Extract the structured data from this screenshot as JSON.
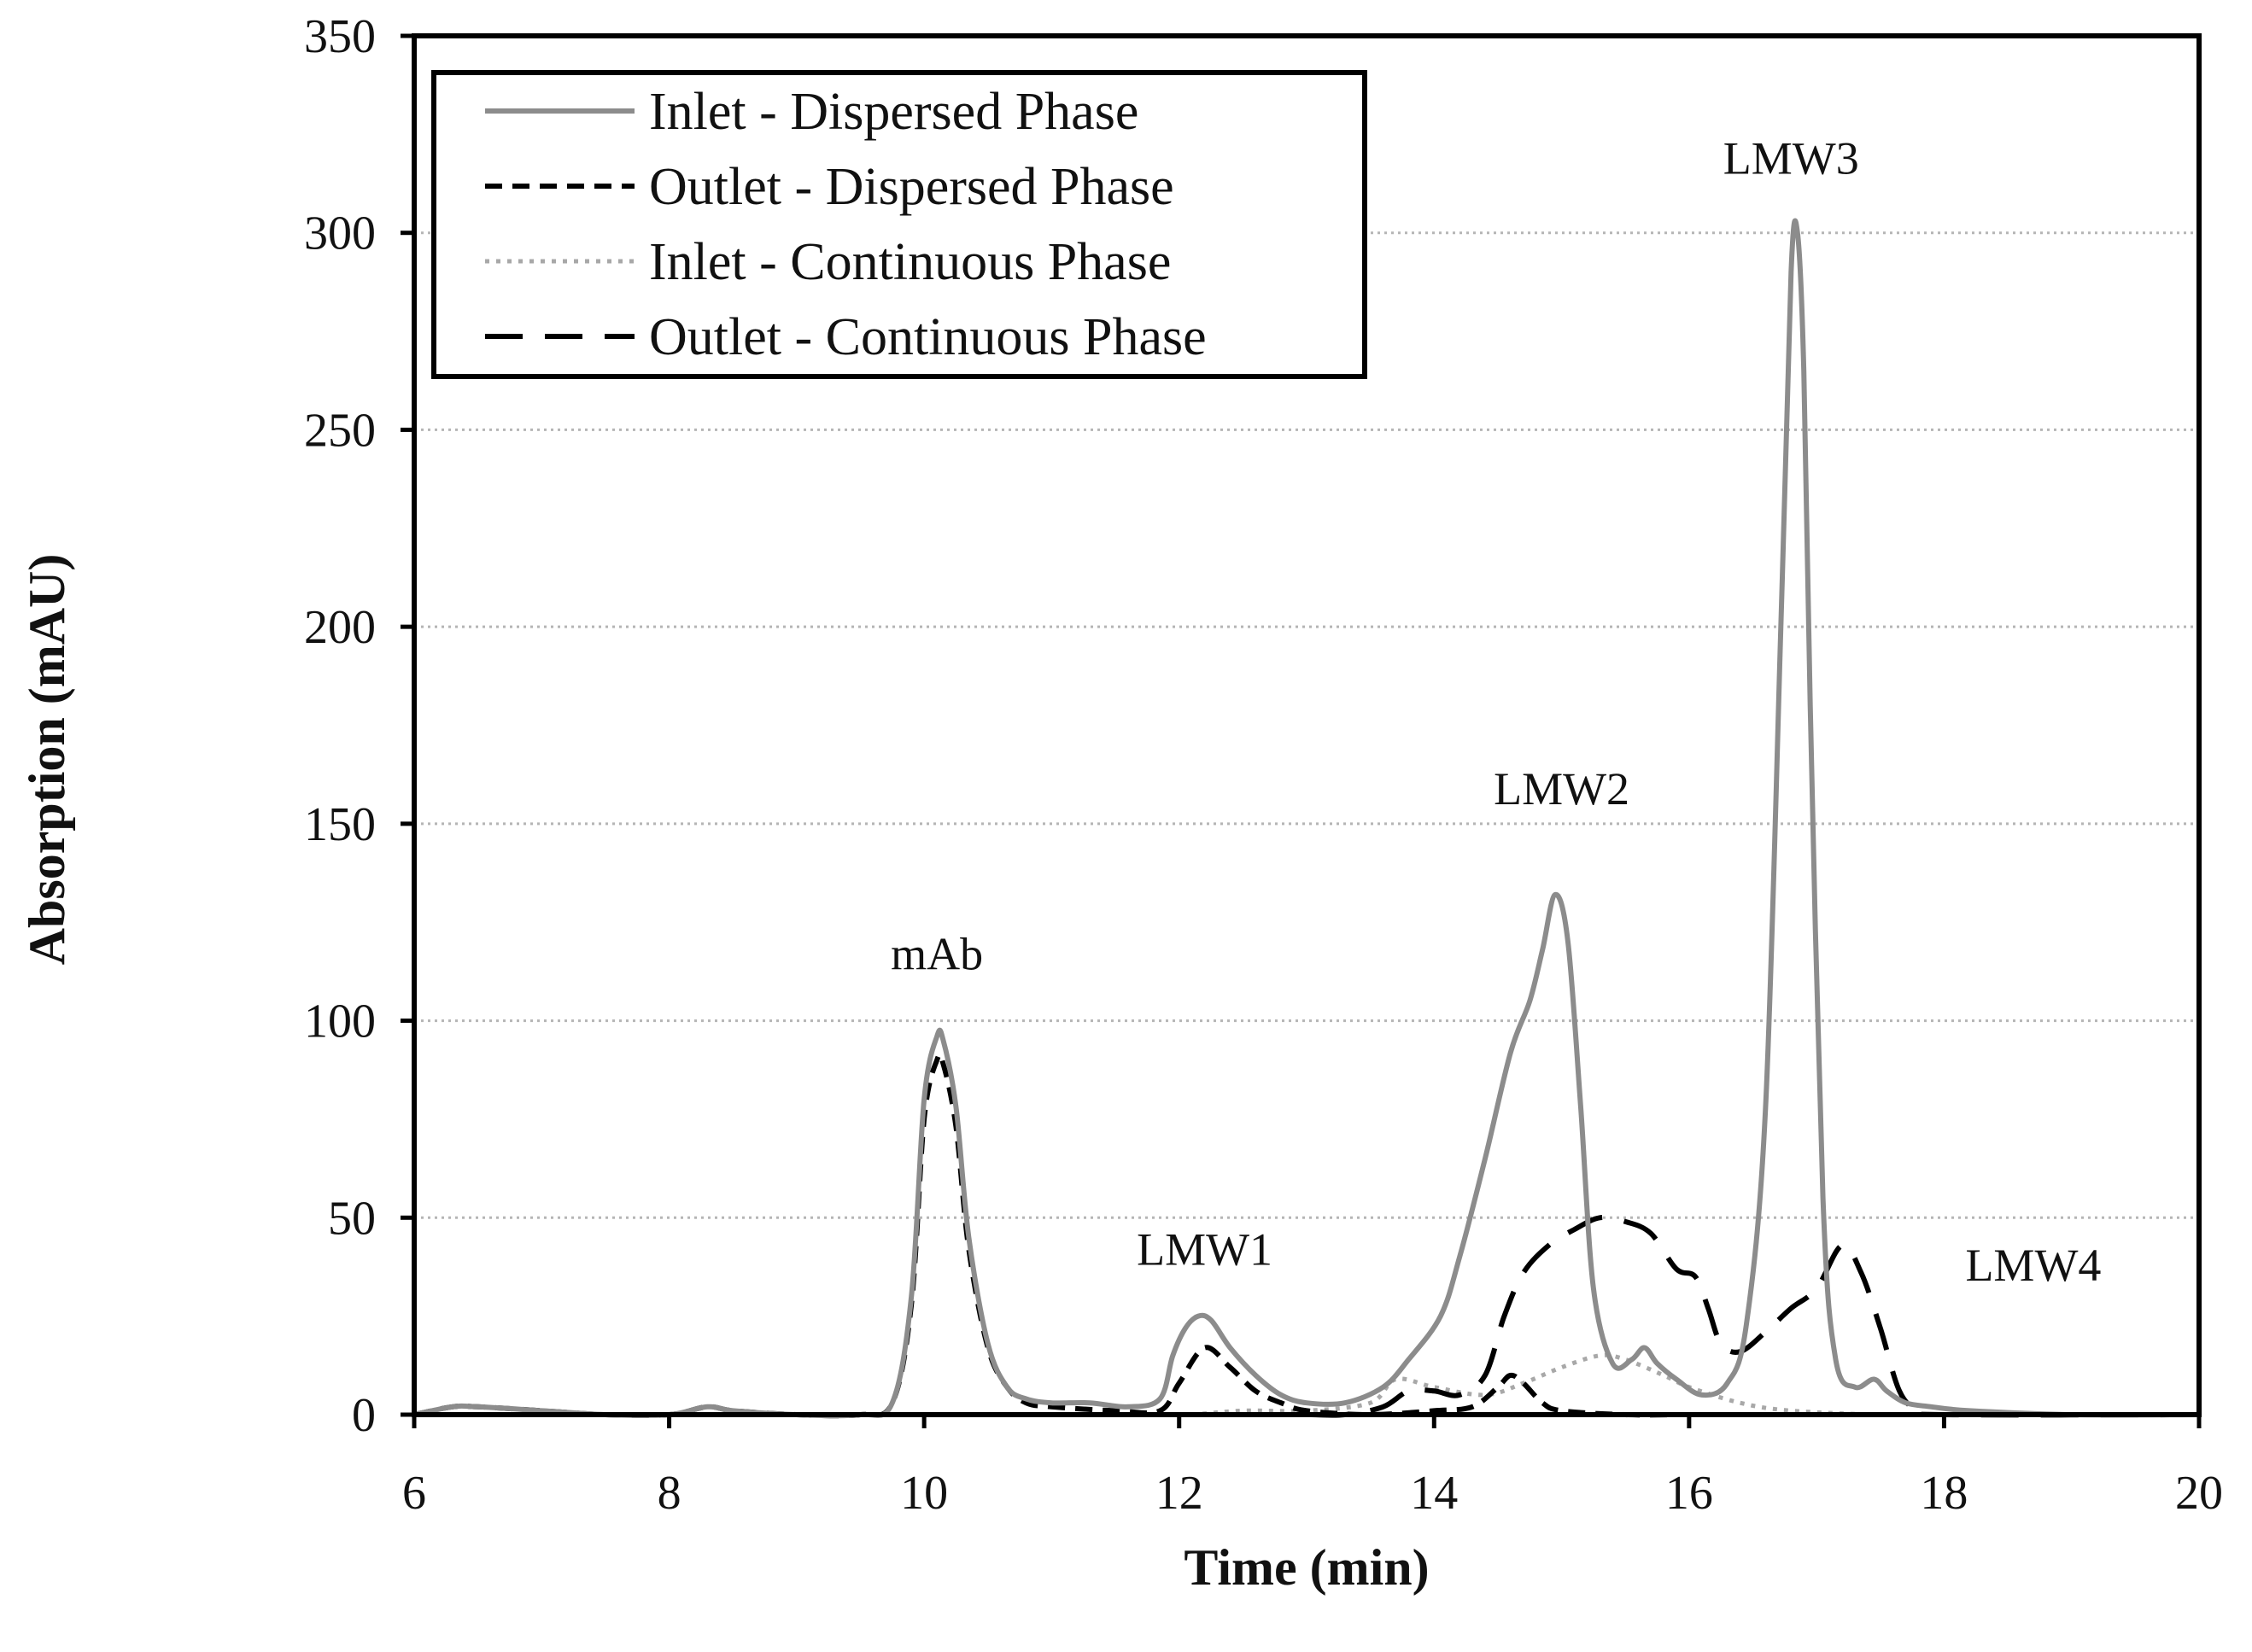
{
  "chart_data": {
    "type": "line",
    "title": "",
    "xlabel": "Time (min)",
    "ylabel": "Absorption (mAU)",
    "xlim": [
      6,
      20
    ],
    "ylim": [
      0,
      350
    ],
    "xticks": [
      6,
      8,
      10,
      12,
      14,
      16,
      18,
      20
    ],
    "yticks": [
      0,
      50,
      100,
      150,
      200,
      250,
      300,
      350
    ],
    "grid": "horizontal dotted",
    "legend_position": "top-left",
    "annotations": [
      {
        "text": "mAb",
        "x": 10.1,
        "y": 113
      },
      {
        "text": "LMW1",
        "x": 12.2,
        "y": 38
      },
      {
        "text": "LMW2",
        "x": 15.0,
        "y": 155
      },
      {
        "text": "LMW3",
        "x": 16.8,
        "y": 315
      },
      {
        "text": "LMW4",
        "x": 18.7,
        "y": 34
      }
    ],
    "series": [
      {
        "name": "Inlet - Dispersed Phase",
        "color": "#8c8c8c",
        "style": "solid",
        "x": [
          6.0,
          6.3,
          6.5,
          7.0,
          7.5,
          8.0,
          8.3,
          8.5,
          9.0,
          9.5,
          9.75,
          9.9,
          10.0,
          10.1,
          10.15,
          10.25,
          10.35,
          10.5,
          10.65,
          10.8,
          11.0,
          11.3,
          11.6,
          11.85,
          11.95,
          12.05,
          12.15,
          12.25,
          12.4,
          12.6,
          12.8,
          13.0,
          13.3,
          13.6,
          13.8,
          14.05,
          14.2,
          14.4,
          14.6,
          14.75,
          14.85,
          14.95,
          15.05,
          15.15,
          15.25,
          15.4,
          15.55,
          15.65,
          15.75,
          15.9,
          16.1,
          16.3,
          16.45,
          16.6,
          16.72,
          16.8,
          16.85,
          16.9,
          16.95,
          17.05,
          17.15,
          17.3,
          17.45,
          17.55,
          17.7,
          17.9,
          18.2,
          19.0,
          20.0
        ],
        "values": [
          0,
          2,
          2,
          1,
          0,
          0,
          2,
          1,
          0,
          0,
          3,
          30,
          80,
          96,
          95,
          78,
          45,
          18,
          7,
          4,
          3,
          3,
          2,
          4,
          15,
          22,
          25,
          24,
          17,
          10,
          5,
          3,
          3,
          7,
          14,
          25,
          40,
          65,
          92,
          105,
          118,
          132,
          120,
          78,
          32,
          13,
          14,
          17,
          13,
          9,
          5,
          8,
          23,
          78,
          200,
          290,
          300,
          265,
          180,
          55,
          14,
          7,
          9,
          6,
          3,
          2,
          1,
          0,
          0
        ]
      },
      {
        "name": "Outlet - Dispersed Phase",
        "color": "#000000",
        "style": "short-dash",
        "x": [
          6.0,
          6.3,
          6.5,
          7.0,
          7.5,
          8.0,
          8.3,
          8.5,
          9.0,
          9.5,
          9.75,
          9.9,
          10.0,
          10.1,
          10.15,
          10.25,
          10.35,
          10.5,
          10.65,
          10.8,
          11.0,
          11.5,
          11.85,
          12.0,
          12.2,
          12.4,
          12.6,
          12.8,
          13.0,
          13.5,
          14.0,
          14.3,
          14.5,
          14.6,
          14.7,
          14.85,
          15.0,
          15.5,
          16.0,
          17.0,
          18.0,
          20.0
        ],
        "values": [
          0,
          2,
          2,
          1,
          0,
          0,
          2,
          1,
          0,
          0,
          3,
          28,
          75,
          90,
          89,
          73,
          42,
          17,
          7,
          3,
          2,
          1,
          1,
          8,
          17,
          12,
          6,
          3,
          1,
          0,
          1,
          2,
          7,
          10,
          8,
          3,
          1,
          0,
          0,
          0,
          0,
          0
        ]
      },
      {
        "name": "Inlet - Continuous Phase",
        "color": "#a8a8a8",
        "style": "dotted",
        "x": [
          6.0,
          7.0,
          8.0,
          9.0,
          10.0,
          11.0,
          12.0,
          12.5,
          13.0,
          13.5,
          13.7,
          14.0,
          14.4,
          14.7,
          15.0,
          15.3,
          15.5,
          15.8,
          16.0,
          16.4,
          16.8,
          17.5,
          18.0,
          20.0
        ],
        "values": [
          0,
          0,
          0,
          0,
          0,
          0,
          0,
          1,
          1,
          3,
          9,
          7,
          5,
          8,
          12,
          15,
          14,
          10,
          7,
          3,
          1,
          0,
          0,
          0
        ]
      },
      {
        "name": "Outlet - Continuous Phase",
        "color": "#000000",
        "style": "long-dash",
        "x": [
          6.0,
          8.0,
          10.0,
          11.0,
          12.0,
          12.5,
          13.0,
          13.3,
          13.6,
          13.8,
          14.0,
          14.2,
          14.4,
          14.55,
          14.7,
          14.9,
          15.1,
          15.3,
          15.5,
          15.7,
          15.9,
          16.05,
          16.15,
          16.25,
          16.4,
          16.6,
          16.8,
          17.0,
          17.2,
          17.35,
          17.5,
          17.65,
          17.8,
          18.0,
          20.0
        ],
        "values": [
          0,
          0,
          0,
          0,
          0,
          0,
          0,
          0,
          2,
          6,
          6,
          5,
          10,
          25,
          36,
          43,
          47,
          50,
          49,
          46,
          37,
          35,
          27,
          18,
          16,
          21,
          27,
          32,
          43,
          36,
          22,
          6,
          1,
          0,
          0
        ]
      }
    ]
  }
}
